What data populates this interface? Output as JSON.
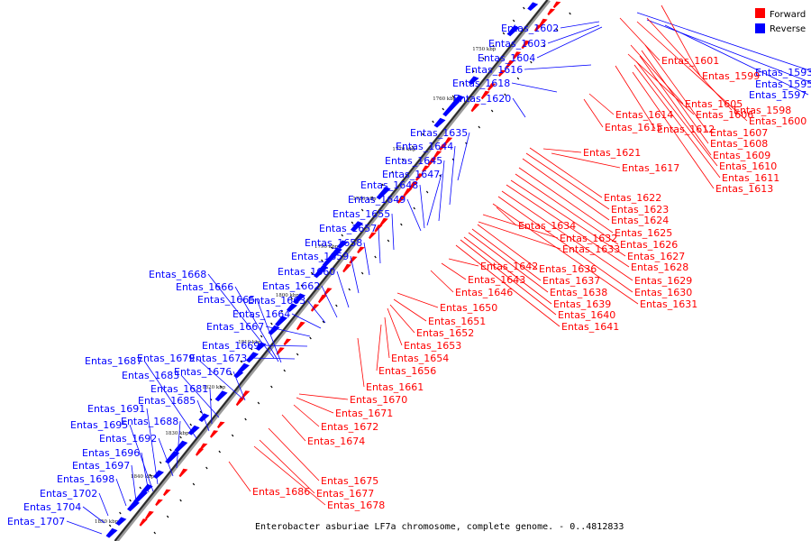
{
  "legend": {
    "forward_label": "Forward",
    "reverse_label": "Reverse",
    "forward_color": "#ff0000",
    "reverse_color": "#0000ff"
  },
  "caption": "Enterobacter asburiae LF7a chromosome, complete genome. - 0..4812833",
  "axis_ticks": [
    "1750 kbp",
    "1760 kbp",
    "1770 kbp",
    "1780 kbp",
    "1790 kbp",
    "1800 kbp",
    "1810 kbp",
    "1820 kbp",
    "1830 kbp",
    "1840 kbp",
    "1850 kbp"
  ],
  "reverse_genes": [
    "Entas_1602",
    "Entas_1603",
    "Entas_1604",
    "Entas_1616",
    "Entas_1618",
    "Entas_1620",
    "Entas_1635",
    "Entas_1644",
    "Entas_1645",
    "Entas_1647",
    "Entas_1648",
    "Entas_1649",
    "Entas_1655",
    "Entas_1657",
    "Entas_1658",
    "Entas_1659",
    "Entas_1660",
    "Entas_1662",
    "Entas_1668",
    "Entas_1666",
    "Entas_1665",
    "Entas_1663",
    "Entas_1664",
    "Entas_1667",
    "Entas_1669",
    "Entas_1673",
    "Entas_1687",
    "Entas_1679",
    "Entas_1676",
    "Entas_1683",
    "Entas_1681",
    "Entas_1685",
    "Entas_1691",
    "Entas_1688",
    "Entas_1695",
    "Entas_1692",
    "Entas_1696",
    "Entas_1697",
    "Entas_1698",
    "Entas_1702",
    "Entas_1704",
    "Entas_1707",
    "Entas_1593",
    "Entas_1595",
    "Entas_1597"
  ],
  "forward_genes": [
    "Entas_1601",
    "Entas_1599",
    "Entas_1598",
    "Entas_1600",
    "Entas_1605",
    "Entas_1606",
    "Entas_1614",
    "Entas_1615",
    "Entas_1612",
    "Entas_1607",
    "Entas_1608",
    "Entas_1609",
    "Entas_1610",
    "Entas_1611",
    "Entas_1613",
    "Entas_1621",
    "Entas_1617",
    "Entas_1622",
    "Entas_1623",
    "Entas_1624",
    "Entas_1625",
    "Entas_1626",
    "Entas_1627",
    "Entas_1628",
    "Entas_1629",
    "Entas_1630",
    "Entas_1631",
    "Entas_1634",
    "Entas_1632",
    "Entas_1633",
    "Entas_1636",
    "Entas_1637",
    "Entas_1638",
    "Entas_1639",
    "Entas_1640",
    "Entas_1641",
    "Entas_1642",
    "Entas_1643",
    "Entas_1646",
    "Entas_1650",
    "Entas_1651",
    "Entas_1652",
    "Entas_1653",
    "Entas_1654",
    "Entas_1656",
    "Entas_1661",
    "Entas_1670",
    "Entas_1671",
    "Entas_1672",
    "Entas_1674",
    "Entas_1675",
    "Entas_1677",
    "Entas_1678",
    "Entas_1686"
  ]
}
